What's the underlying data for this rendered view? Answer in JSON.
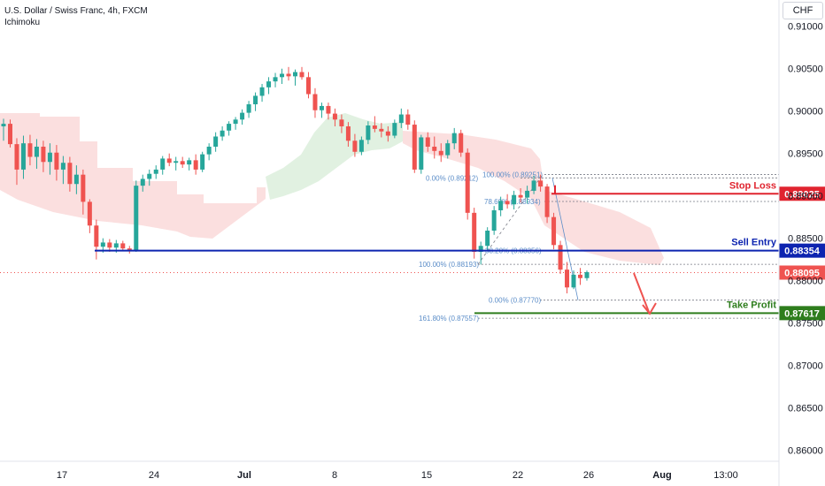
{
  "header": {
    "symbol": "U.S. Dollar / Swiss Franc, 4h, FXCM",
    "indicator": "Ichimoku",
    "currency": "CHF"
  },
  "chart_data": {
    "type": "candlestick",
    "instrument": "USDCHF",
    "timeframe": "4h",
    "x_ticks": [
      "17",
      "24",
      "Jul",
      "8",
      "15",
      "22",
      "26",
      "Aug",
      "13:00"
    ],
    "y_ticks": [
      "0.86000",
      "0.86500",
      "0.87000",
      "0.87500",
      "0.88000",
      "0.88500",
      "0.89000",
      "0.89500",
      "0.90000",
      "0.90500",
      "0.91000"
    ],
    "ylim": [
      0.8587,
      0.9131
    ],
    "colors": {
      "up": "#26a69a",
      "down": "#ef5350",
      "entry": "#0d24b0",
      "stop": "#e0242f",
      "target": "#2e7d1d",
      "fib": "#5b8dc8"
    },
    "levels": [
      {
        "name": "Stop Loss",
        "value": 0.89025,
        "value_label": "0.89025",
        "color": "#e0242f"
      },
      {
        "name": "Sell Entry",
        "value": 0.88354,
        "value_label": "0.88354",
        "color": "#0d24b0"
      },
      {
        "name": "Take Profit",
        "value": 0.87617,
        "value_label": "0.87617",
        "color": "#2e7d1d"
      }
    ],
    "current_price": {
      "value": 0.88095,
      "label": "0.88095",
      "color": "#ef5350"
    },
    "fib_labels": [
      {
        "text": "0.00% (0.89212)",
        "price": 0.89212
      },
      {
        "text": "100.00% (0.89251)",
        "price": 0.89251
      },
      {
        "text": "78.60% (0.88934)",
        "price": 0.88934
      },
      {
        "text": "38.20% (0.88356)",
        "price": 0.88356
      },
      {
        "text": "100.00% (0.88193)",
        "price": 0.88193
      },
      {
        "text": "0.00% (0.87770)",
        "price": 0.8777
      },
      {
        "text": "161.80% (0.87557)",
        "price": 0.87557
      }
    ],
    "candles": [
      [
        0.8982,
        0.8991,
        0.8965,
        0.8985
      ],
      [
        0.8985,
        0.899,
        0.8957,
        0.8961
      ],
      [
        0.8961,
        0.8968,
        0.8913,
        0.8931
      ],
      [
        0.8931,
        0.8971,
        0.892,
        0.8962
      ],
      [
        0.8962,
        0.8972,
        0.8936,
        0.8946
      ],
      [
        0.8946,
        0.8967,
        0.8932,
        0.8958
      ],
      [
        0.8958,
        0.8965,
        0.8928,
        0.894
      ],
      [
        0.894,
        0.8962,
        0.8925,
        0.8951
      ],
      [
        0.8951,
        0.896,
        0.8918,
        0.8931
      ],
      [
        0.8931,
        0.8947,
        0.8914,
        0.8939
      ],
      [
        0.8939,
        0.8946,
        0.8905,
        0.8914
      ],
      [
        0.8914,
        0.8936,
        0.8902,
        0.8925
      ],
      [
        0.8925,
        0.8931,
        0.8878,
        0.8893
      ],
      [
        0.8893,
        0.8896,
        0.8856,
        0.8865
      ],
      [
        0.8865,
        0.8872,
        0.8825,
        0.884
      ],
      [
        0.884,
        0.885,
        0.8833,
        0.8845
      ],
      [
        0.8845,
        0.8849,
        0.8834,
        0.8839
      ],
      [
        0.8839,
        0.8848,
        0.8833,
        0.8844
      ],
      [
        0.8844,
        0.8847,
        0.8835,
        0.8838
      ],
      [
        0.8838,
        0.8841,
        0.8832,
        0.8836
      ],
      [
        0.8836,
        0.8918,
        0.8834,
        0.8912
      ],
      [
        0.8912,
        0.8925,
        0.8905,
        0.892
      ],
      [
        0.892,
        0.8931,
        0.8912,
        0.8926
      ],
      [
        0.8926,
        0.8936,
        0.892,
        0.8931
      ],
      [
        0.8931,
        0.8947,
        0.8925,
        0.8944
      ],
      [
        0.8944,
        0.895,
        0.8935,
        0.8939
      ],
      [
        0.8939,
        0.8946,
        0.893,
        0.8941
      ],
      [
        0.8941,
        0.8946,
        0.8933,
        0.8937
      ],
      [
        0.8937,
        0.8945,
        0.893,
        0.8942
      ],
      [
        0.8942,
        0.8949,
        0.8925,
        0.8931
      ],
      [
        0.8931,
        0.8952,
        0.8928,
        0.8949
      ],
      [
        0.8949,
        0.8962,
        0.8942,
        0.8958
      ],
      [
        0.8958,
        0.8975,
        0.8952,
        0.897
      ],
      [
        0.897,
        0.8982,
        0.8965,
        0.8977
      ],
      [
        0.8977,
        0.8988,
        0.8971,
        0.8985
      ],
      [
        0.8985,
        0.8993,
        0.8978,
        0.899
      ],
      [
        0.899,
        0.9002,
        0.8984,
        0.8998
      ],
      [
        0.8998,
        0.9012,
        0.8992,
        0.9008
      ],
      [
        0.9008,
        0.9022,
        0.9,
        0.9018
      ],
      [
        0.9018,
        0.9032,
        0.9011,
        0.9028
      ],
      [
        0.9028,
        0.904,
        0.902,
        0.9035
      ],
      [
        0.9035,
        0.9045,
        0.9028,
        0.904
      ],
      [
        0.904,
        0.905,
        0.9032,
        0.9044
      ],
      [
        0.9044,
        0.9052,
        0.9036,
        0.9041
      ],
      [
        0.9041,
        0.9049,
        0.903,
        0.9046
      ],
      [
        0.9046,
        0.9052,
        0.9037,
        0.904
      ],
      [
        0.904,
        0.9046,
        0.9015,
        0.902
      ],
      [
        0.902,
        0.9027,
        0.8992,
        0.9001
      ],
      [
        0.9001,
        0.901,
        0.8992,
        0.9006
      ],
      [
        0.9006,
        0.901,
        0.899,
        0.8997
      ],
      [
        0.8997,
        0.9003,
        0.8982,
        0.899
      ],
      [
        0.899,
        0.8996,
        0.8974,
        0.8982
      ],
      [
        0.8982,
        0.8987,
        0.8958,
        0.8965
      ],
      [
        0.8965,
        0.8973,
        0.8946,
        0.8952
      ],
      [
        0.8952,
        0.897,
        0.8948,
        0.8966
      ],
      [
        0.8966,
        0.8988,
        0.8961,
        0.8983
      ],
      [
        0.8983,
        0.8994,
        0.8975,
        0.8979
      ],
      [
        0.8979,
        0.8986,
        0.8969,
        0.8976
      ],
      [
        0.8976,
        0.8982,
        0.8964,
        0.8971
      ],
      [
        0.8971,
        0.899,
        0.8968,
        0.8986
      ],
      [
        0.8986,
        0.9003,
        0.898,
        0.8996
      ],
      [
        0.8996,
        0.9002,
        0.8978,
        0.8984
      ],
      [
        0.8984,
        0.8989,
        0.8927,
        0.8931
      ],
      [
        0.8931,
        0.8972,
        0.8926,
        0.8969
      ],
      [
        0.8969,
        0.8975,
        0.8952,
        0.8958
      ],
      [
        0.8958,
        0.897,
        0.8944,
        0.8953
      ],
      [
        0.8953,
        0.8962,
        0.894,
        0.8948
      ],
      [
        0.8948,
        0.8966,
        0.8944,
        0.8962
      ],
      [
        0.8962,
        0.898,
        0.8955,
        0.8974
      ],
      [
        0.8974,
        0.8978,
        0.8946,
        0.8951
      ],
      [
        0.8951,
        0.8956,
        0.8872,
        0.888
      ],
      [
        0.888,
        0.8886,
        0.8826,
        0.8834
      ],
      [
        0.8834,
        0.8846,
        0.8819,
        0.8841
      ],
      [
        0.8841,
        0.8863,
        0.8836,
        0.8859
      ],
      [
        0.8859,
        0.8888,
        0.8854,
        0.8883
      ],
      [
        0.8883,
        0.8899,
        0.8876,
        0.8894
      ],
      [
        0.8894,
        0.8902,
        0.8885,
        0.889
      ],
      [
        0.889,
        0.8906,
        0.8884,
        0.8901
      ],
      [
        0.8901,
        0.8909,
        0.8892,
        0.8898
      ],
      [
        0.8898,
        0.8912,
        0.8891,
        0.8906
      ],
      [
        0.8906,
        0.8924,
        0.8902,
        0.8918
      ],
      [
        0.8918,
        0.8925,
        0.8905,
        0.8911
      ],
      [
        0.8911,
        0.8914,
        0.8868,
        0.8875
      ],
      [
        0.8875,
        0.888,
        0.8837,
        0.8842
      ],
      [
        0.8842,
        0.8847,
        0.8808,
        0.8813
      ],
      [
        0.8813,
        0.8822,
        0.8785,
        0.8792
      ],
      [
        0.8792,
        0.8812,
        0.879,
        0.8807
      ],
      [
        0.8807,
        0.8815,
        0.8795,
        0.8803
      ],
      [
        0.8803,
        0.8812,
        0.88,
        0.881
      ]
    ]
  }
}
